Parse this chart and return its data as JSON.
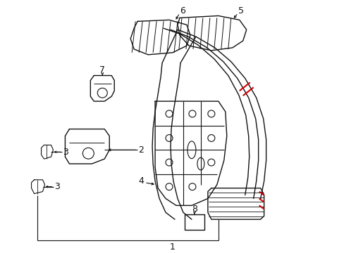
{
  "bg_color": "#ffffff",
  "line_color": "#111111",
  "red_color": "#cc0000",
  "label_color": "#111111",
  "figsize": [
    4.89,
    3.6
  ],
  "dpi": 100
}
